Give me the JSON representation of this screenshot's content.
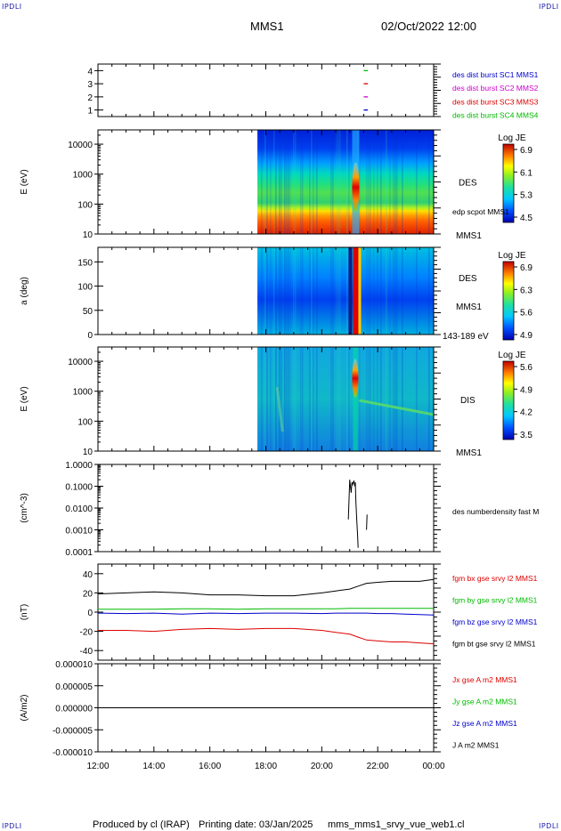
{
  "header": {
    "corner_label": "IPDLI",
    "mission": "MMS1",
    "datetime": "02/Oct/2022 12:00"
  },
  "footer": {
    "produced_by": "Produced by cl (IRAP)",
    "printing_date": "Printing date: 03/Jan/2025",
    "filename": "mms_mms1_srvy_vue_web1.cl"
  },
  "colors": {
    "sc1": "#0000cc",
    "sc2": "#cc00cc",
    "sc3": "#dd0000",
    "sc4": "#00bb00",
    "bx": "#dd0000",
    "by": "#00bb00",
    "bz": "#0000cc",
    "bt": "#000000"
  },
  "chart_data": [
    {
      "type": "scatter",
      "name": "burst availability",
      "ylim": [
        0.5,
        4.5
      ],
      "ticks": [
        "1",
        "2",
        "3",
        "4"
      ],
      "legend": [
        {
          "label": "des dist burst SC1 MMS1",
          "color": "#0000cc"
        },
        {
          "label": "des dist burst SC2 MMS2",
          "color": "#cc00cc"
        },
        {
          "label": "des dist burst SC3 MMS3",
          "color": "#dd0000"
        },
        {
          "label": "des dist burst SC4 MMS4",
          "color": "#00bb00"
        }
      ],
      "marks": [
        {
          "level": 4,
          "t_start": 21.5,
          "t_end": 21.65,
          "color": "#00bb00"
        },
        {
          "level": 3,
          "t_start": 21.5,
          "t_end": 21.65,
          "color": "#dd0000"
        },
        {
          "level": 2,
          "t_start": 21.5,
          "t_end": 21.65,
          "color": "#cc00cc"
        },
        {
          "level": 1,
          "t_start": 21.5,
          "t_end": 21.65,
          "color": "#0000cc"
        }
      ]
    },
    {
      "type": "heatmap",
      "name": "DES energy spectrogram",
      "ylabel": "E (eV)",
      "ylim": [
        10,
        30000
      ],
      "yscale": "log",
      "ticks": [
        "10",
        "100",
        "1000",
        "10000"
      ],
      "data_start_hour": 17.7,
      "event_hour": 21.15,
      "right_labels": [
        "DES",
        "edp scpot MMS1",
        "MMS1"
      ],
      "colorbar": {
        "title": "Log JE",
        "ticks": [
          "6.9",
          "6.1",
          "5.3",
          "4.5"
        ]
      }
    },
    {
      "type": "heatmap",
      "name": "DES pitch angle",
      "ylabel": "a (deg)",
      "ylim": [
        0,
        180
      ],
      "ticks": [
        "0",
        "50",
        "100",
        "150"
      ],
      "data_start_hour": 17.7,
      "event_hour": 21.15,
      "right_labels": [
        "DES",
        "MMS1",
        "143-189 eV"
      ],
      "colorbar": {
        "title": "Log JE",
        "ticks": [
          "6.9",
          "6.3",
          "5.6",
          "4.9"
        ]
      }
    },
    {
      "type": "heatmap",
      "name": "DIS energy spectrogram",
      "ylabel": "E (eV)",
      "ylim": [
        10,
        30000
      ],
      "yscale": "log",
      "ticks": [
        "10",
        "100",
        "1000",
        "10000"
      ],
      "data_start_hour": 17.7,
      "event_hour": 21.15,
      "right_labels": [
        "DIS",
        "MMS1"
      ],
      "colorbar": {
        "title": "Log JE",
        "ticks": [
          "5.6",
          "4.9",
          "4.2",
          "3.5"
        ]
      }
    },
    {
      "type": "line",
      "name": "density",
      "ylabel": "(cm^-3)",
      "yscale": "log",
      "ylim": [
        0.0001,
        1.0
      ],
      "ticks": [
        "1.0000",
        "0.1000",
        "0.0100",
        "0.0010",
        "0.0001"
      ],
      "legend": [
        {
          "label": "des numberdensity fast M",
          "color": "#000000"
        }
      ],
      "x": [
        20.95,
        21.0,
        21.05,
        21.08,
        21.1,
        21.15,
        21.18,
        21.2,
        21.22,
        21.25,
        21.28,
        21.3,
        21.6,
        21.62
      ],
      "y": [
        0.003,
        0.2,
        0.05,
        0.15,
        0.12,
        0.18,
        0.1,
        0.15,
        0.02,
        0.003,
        0.0006,
        0.00015,
        0.001,
        0.005
      ]
    },
    {
      "type": "line",
      "name": "magnetic field",
      "ylabel": "(nT)",
      "ylim": [
        -50,
        50
      ],
      "ticks": [
        "40",
        "20",
        "0",
        "-20",
        "-40"
      ],
      "x": [
        12,
        13,
        14,
        15,
        16,
        17,
        18,
        19,
        20,
        20.5,
        21,
        21.3,
        21.6,
        22,
        22.5,
        23,
        23.5,
        24
      ],
      "series": [
        {
          "name": "fgm bx gse srvy l2 MMS1",
          "color": "#dd0000",
          "values": [
            -19,
            -19,
            -20,
            -18,
            -17,
            -18,
            -17,
            -17,
            -19,
            -21,
            -23,
            -26,
            -29,
            -30,
            -31,
            -31,
            -32,
            -33
          ]
        },
        {
          "name": "fgm by gse srvy l2 MMS1",
          "color": "#00bb00",
          "values": [
            3,
            3,
            3,
            3.5,
            3.5,
            3,
            3.5,
            3.5,
            3.5,
            3.5,
            4,
            4,
            4,
            4,
            4,
            4,
            4,
            4
          ]
        },
        {
          "name": "fgm bz gse srvy l2 MMS1",
          "color": "#0000cc",
          "values": [
            -1,
            -1.5,
            -1,
            -2,
            -1,
            -1.5,
            -1,
            -1,
            -1.5,
            -1,
            -1,
            -1,
            -1,
            -1.5,
            -1.5,
            -2,
            -2.5,
            -3
          ]
        },
        {
          "name": "fgm bt gse srvy l2 MMS1",
          "color": "#000000",
          "values": [
            19,
            20,
            21,
            20,
            18,
            18,
            17,
            17,
            20,
            22,
            24,
            27,
            30,
            31,
            32,
            32,
            32,
            34
          ]
        }
      ]
    },
    {
      "type": "line",
      "name": "current density",
      "ylabel": "(A/m2)",
      "ylim": [
        -1e-05,
        1e-05
      ],
      "ticks": [
        "0.000010",
        "0.000005",
        "0.000000",
        "-0.000005",
        "-0.000010"
      ],
      "x": [
        12,
        24
      ],
      "series": [
        {
          "name": "Jx gse A m2 MMS1",
          "color": "#dd0000",
          "values": [
            0,
            0
          ]
        },
        {
          "name": "Jy gse A m2 MMS1",
          "color": "#00bb00",
          "values": [
            0,
            0
          ]
        },
        {
          "name": "Jz gse A m2 MMS1",
          "color": "#0000cc",
          "values": [
            0,
            0
          ]
        },
        {
          "name": "J A m2 MMS1",
          "color": "#000000",
          "values": [
            0,
            0
          ]
        }
      ],
      "xticks": [
        "12:00",
        "14:00",
        "16:00",
        "18:00",
        "20:00",
        "22:00",
        "00:00"
      ],
      "xlim": [
        12,
        24
      ]
    }
  ]
}
